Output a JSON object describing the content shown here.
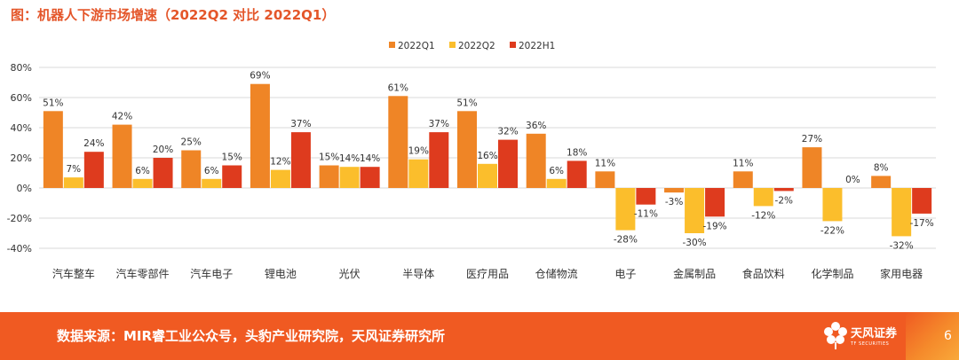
{
  "header": {
    "title": "图：机器人下游市场增速（2022Q2 对比 2022Q1）"
  },
  "footer": {
    "source": "数据来源：MIR睿工业公众号，头豹产业研究院，天风证券研究所",
    "logo_name": "天风证券",
    "logo_sub": "TF SECURITIES",
    "page_number": "6"
  },
  "colors": {
    "series1": "#EF8526",
    "series2": "#FBBE2C",
    "series3": "#DE3B1E",
    "grid": "#D9D9D9",
    "axis_text": "#333333",
    "accent": "#E4562A"
  },
  "chart_data": {
    "type": "bar",
    "title": "",
    "xlabel": "",
    "ylabel": "",
    "ylim": [
      -40,
      80
    ],
    "yticks": [
      -40,
      -20,
      0,
      20,
      40,
      60,
      80
    ],
    "ytick_labels": [
      "-40%",
      "-20%",
      "0%",
      "20%",
      "40%",
      "60%",
      "80%"
    ],
    "legend_position": "top-center",
    "grid": true,
    "categories": [
      "汽车整车",
      "汽车零部件",
      "汽车电子",
      "锂电池",
      "光伏",
      "半导体",
      "医疗用品",
      "仓储物流",
      "电子",
      "金属制品",
      "食品饮料",
      "化学制品",
      "家用电器"
    ],
    "series": [
      {
        "name": "2022Q1",
        "values": [
          51,
          42,
          25,
          69,
          15,
          61,
          51,
          36,
          11,
          -3,
          11,
          27,
          8
        ],
        "labels": [
          "51%",
          "42%",
          "25%",
          "69%",
          "15%",
          "61%",
          "51%",
          "36%",
          "11%",
          "-3%",
          "11%",
          "27%",
          "8%"
        ]
      },
      {
        "name": "2022Q2",
        "values": [
          7,
          6,
          6,
          12,
          14,
          19,
          16,
          6,
          -28,
          -30,
          -12,
          -22,
          -32
        ],
        "labels": [
          "7%",
          "6%",
          "6%",
          "12%",
          "14%",
          "19%",
          "16%",
          "6%",
          "-28%",
          "-30%",
          "-12%",
          "-22%",
          "-32%"
        ]
      },
      {
        "name": "2022H1",
        "values": [
          24,
          20,
          15,
          37,
          14,
          37,
          32,
          18,
          -11,
          -19,
          -2,
          0,
          -17
        ],
        "labels": [
          "24%",
          "20%",
          "15%",
          "37%",
          "14%",
          "37%",
          "32%",
          "18%",
          "-11%",
          "-19%",
          "-2%",
          "0%",
          "-17%"
        ]
      }
    ]
  }
}
